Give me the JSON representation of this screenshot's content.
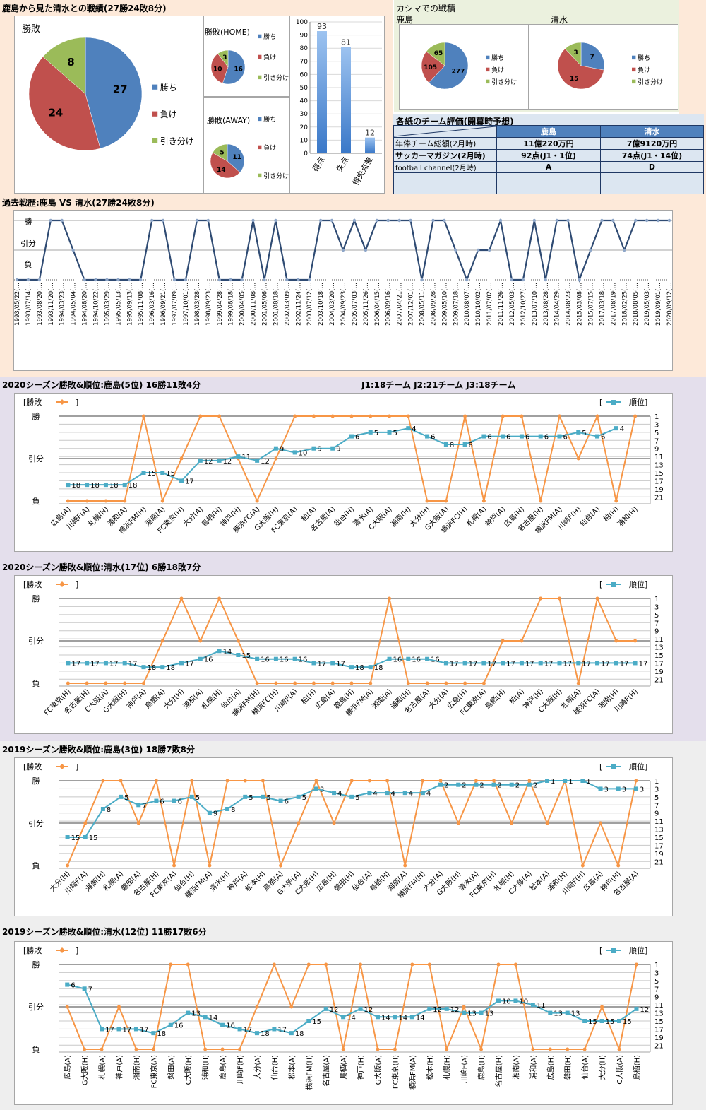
{
  "colors": {
    "win": "#4f81bd",
    "loss": "#c0504d",
    "draw": "#9bbb59",
    "history_line": "#2f4b73",
    "result_line": "#f79646",
    "rank_line": "#4bacc6",
    "table_header": "#4f81bd"
  },
  "sections": {
    "overall_title": "鹿島から見た清水との戦績(27勝24敗8分)",
    "kashima_stadium_title": "カシマでの戦積",
    "kashima_label": "鹿島",
    "shimizu_label": "清水",
    "evaluation_title": "各紙のチーム評価(開幕時予想)",
    "history_title": "過去戦歴:鹿島 VS 清水(27勝24敗8分)",
    "k2020_title": "2020シーズン勝敗&順位:鹿島(5位) 16勝11敗4分",
    "league_info": "J1:18チーム J2:21チーム J3:18チーム",
    "s2020_title": "2020シーズン勝敗&順位:清水(17位) 6勝18敗7分",
    "k2019_title": "2019シーズン勝敗&順位:鹿島(3位) 18勝7敗8分",
    "s2019_title": "2019シーズン勝敗&順位:清水(12位) 11勝17敗6分"
  },
  "legend": {
    "win": "勝ち",
    "loss": "負け",
    "draw": "引き分け",
    "result": "勝敗",
    "rank": "順位"
  },
  "evaluation_table": {
    "header": [
      "",
      "鹿島",
      "清水"
    ],
    "rows": [
      [
        "年俸チーム総額(2月時)",
        "11億220万円",
        "7億9120万円"
      ],
      [
        "サッカーマガジン(2月時)",
        "92点(J1・1位)",
        "74点(J1・14位)"
      ],
      [
        "football channel(2月時)",
        "A",
        "D"
      ],
      [
        "",
        "",
        ""
      ],
      [
        "",
        "",
        ""
      ]
    ]
  },
  "chart_data": [
    {
      "id": "overall_pie",
      "type": "pie",
      "title": "勝敗",
      "labels": [
        "勝ち",
        "負け",
        "引き分け"
      ],
      "values": [
        27,
        24,
        8
      ],
      "legend": "right"
    },
    {
      "id": "home_pie",
      "type": "pie",
      "title": "勝敗(HOME)",
      "labels": [
        "勝ち",
        "負け",
        "引き分け"
      ],
      "values": [
        16,
        10,
        3
      ],
      "legend": "right"
    },
    {
      "id": "away_pie",
      "type": "pie",
      "title": "勝敗(AWAY)",
      "labels": [
        "勝ち",
        "負け",
        "引き分け"
      ],
      "values": [
        11,
        14,
        5
      ],
      "legend": "right"
    },
    {
      "id": "goals_bar",
      "type": "bar",
      "categories": [
        "得点",
        "失点",
        "得失点差"
      ],
      "values": [
        93,
        81,
        12
      ],
      "ylim": [
        0,
        100
      ],
      "yticks": [
        0,
        10,
        20,
        30,
        40,
        50,
        60,
        70,
        80,
        90,
        100
      ]
    },
    {
      "id": "kashima_home_pie",
      "type": "pie",
      "title": "鹿島",
      "labels": [
        "勝ち",
        "負け",
        "引き分け"
      ],
      "values": [
        277,
        105,
        65
      ],
      "legend": "right"
    },
    {
      "id": "shimizu_at_kashima_pie",
      "type": "pie",
      "title": "清水",
      "labels": [
        "勝ち",
        "負け",
        "引き分け"
      ],
      "values": [
        7,
        15,
        3
      ],
      "legend": "right"
    },
    {
      "id": "history_line",
      "type": "line",
      "title": "過去戦歴:鹿島 VS 清水",
      "ytick_labels": [
        "負",
        "引分",
        "勝"
      ],
      "x": [
        "1993/05/22",
        "1993/07/14",
        "1993/08/20",
        "1993/11/20",
        "1994/03/23",
        "1994/05/04",
        "1994/08/20",
        "1994/10/22",
        "1995/03/29",
        "1995/05/13",
        "1995/09/13",
        "1995/11/08",
        "1996/03/16",
        "1996/09/21",
        "1997/07/09",
        "1997/10/01",
        "1998/03/28",
        "1998/09/23",
        "1999/04/28",
        "1999/08/18",
        "2000/04/05",
        "2000/11/08",
        "2001/05/06",
        "2001/08/18",
        "2002/03/09",
        "2002/11/24",
        "2003/07/12",
        "2003/10/18",
        "2004/03/20",
        "2004/09/23",
        "2005/07/03",
        "2005/11/26",
        "2006/04/15",
        "2006/09/16",
        "2007/04/21",
        "2007/12/01",
        "2008/05/11",
        "2008/09/28",
        "2009/05/10",
        "2009/07/18",
        "2010/08/07",
        "2010/10/02",
        "2011/07/02",
        "2011/11/26",
        "2012/05/03",
        "2012/10/27",
        "2013/07/10",
        "2013/08/28",
        "2014/04/29",
        "2014/08/23",
        "2015/03/08",
        "2015/07/15",
        "2017/03/18",
        "2017/08/19",
        "2018/02/25",
        "2018/08/05",
        "2019/05/03",
        "2019/09/01",
        "2020/09/12"
      ],
      "results": [
        "L",
        "L",
        "L",
        "W",
        "W",
        "D",
        "L",
        "L",
        "L",
        "L",
        "L",
        "L",
        "W",
        "W",
        "L",
        "L",
        "W",
        "W",
        "L",
        "L",
        "L",
        "W",
        "L",
        "W",
        "L",
        "L",
        "L",
        "W",
        "W",
        "D",
        "W",
        "D",
        "W",
        "W",
        "W",
        "W",
        "L",
        "W",
        "W",
        "D",
        "L",
        "D",
        "D",
        "W",
        "L",
        "L",
        "W",
        "L",
        "W",
        "W",
        "L",
        "D",
        "W",
        "W",
        "D",
        "W",
        "W",
        "W",
        "W"
      ]
    },
    {
      "id": "kashima_2020",
      "type": "line",
      "title": "2020シーズン勝敗&順位:鹿島(5位) 16勝11敗4分",
      "left_axis": [
        "負",
        "引分",
        "勝"
      ],
      "right_axis": [
        1,
        3,
        5,
        7,
        9,
        11,
        13,
        15,
        17,
        19,
        21
      ],
      "x": [
        "広島(A)",
        "川崎F(A)",
        "札幌(H)",
        "浦和(A)",
        "横浜FM(H)",
        "湘南(A)",
        "FC東京(H)",
        "大分(A)",
        "鳥栖(H)",
        "神戸(H)",
        "横浜FC(A)",
        "G大阪(H)",
        "FC東京(A)",
        "柏(A)",
        "名古屋(A)",
        "仙台(H)",
        "清水(A)",
        "C大阪(A)",
        "湘南(H)",
        "大分(H)",
        "G大阪(A)",
        "横浜FC(H)",
        "札幌(A)",
        "神戸(A)",
        "広島(H)",
        "名古屋(H)",
        "横浜FM(A)",
        "川崎F(H)",
        "仙台(A)",
        "柏(H)",
        "浦和(H)"
      ],
      "series": [
        {
          "name": "勝敗",
          "values": [
            "L",
            "L",
            "L",
            "L",
            "W",
            "L",
            "D",
            "W",
            "W",
            "D",
            "L",
            "D",
            "W",
            "W",
            "W",
            "W",
            "W",
            "W",
            "W",
            "L",
            "L",
            "W",
            "L",
            "W",
            "W",
            "L",
            "W",
            "D",
            "W",
            "L",
            "W"
          ]
        },
        {
          "name": "順位",
          "values": [
            18,
            18,
            18,
            18,
            15,
            15,
            17,
            12,
            12,
            11,
            12,
            9,
            10,
            9,
            9,
            6,
            5,
            5,
            4,
            6,
            8,
            8,
            6,
            6,
            6,
            6,
            6,
            5,
            6,
            4,
            null
          ]
        }
      ]
    },
    {
      "id": "shimizu_2020",
      "type": "line",
      "title": "2020シーズン勝敗&順位:清水(17位) 6勝18敗7分",
      "left_axis": [
        "負",
        "引分",
        "勝"
      ],
      "right_axis": [
        1,
        3,
        5,
        7,
        9,
        11,
        13,
        15,
        17,
        19,
        21
      ],
      "x": [
        "FC東京(H)",
        "名古屋(H)",
        "C大阪(A)",
        "G大阪(H)",
        "神戸(A)",
        "鳥栖(A)",
        "大分(H)",
        "浦和(A)",
        "札幌(H)",
        "仙台(A)",
        "横浜FM(H)",
        "横浜FC(H)",
        "川崎F(A)",
        "柏(H)",
        "広島(A)",
        "鹿島(H)",
        "横浜FM(A)",
        "湘南(A)",
        "浦和(H)",
        "名古屋(A)",
        "大分(A)",
        "広島(H)",
        "FC東京(A)",
        "鳥栖(H)",
        "柏(A)",
        "神戸(H)",
        "C大阪(H)",
        "札幌(A)",
        "横浜FC(A)",
        "湘南(H)",
        "川崎F(H)"
      ],
      "series": [
        {
          "name": "勝敗",
          "values": [
            "L",
            "L",
            "L",
            "L",
            "L",
            "D",
            "W",
            "D",
            "W",
            "D",
            "L",
            "L",
            "L",
            "L",
            "L",
            "L",
            "L",
            "W",
            "L",
            "L",
            "L",
            "L",
            "L",
            "D",
            "D",
            "W",
            "W",
            "L",
            "W",
            "D",
            "D"
          ]
        },
        {
          "name": "順位",
          "values": [
            17,
            17,
            17,
            17,
            18,
            18,
            17,
            16,
            14,
            15,
            16,
            16,
            16,
            17,
            17,
            18,
            18,
            16,
            16,
            16,
            17,
            17,
            17,
            17,
            17,
            17,
            17,
            17,
            17,
            17,
            17
          ]
        }
      ]
    },
    {
      "id": "kashima_2019",
      "type": "line",
      "title": "2019シーズン勝敗&順位:鹿島(3位) 18勝7敗8分",
      "left_axis": [
        "負",
        "引分",
        "勝"
      ],
      "right_axis": [
        1,
        3,
        5,
        7,
        9,
        11,
        13,
        15,
        17,
        19,
        21
      ],
      "x": [
        "大分(H)",
        "川崎F(A)",
        "湘南(H)",
        "札幌(A)",
        "磐田(A)",
        "名古屋(H)",
        "FC東京(A)",
        "仙台(H)",
        "横浜FM(A)",
        "清水(H)",
        "神戸(A)",
        "松本(H)",
        "鳥栖(A)",
        "G大阪(A)",
        "C大阪(H)",
        "広島(H)",
        "磐田(H)",
        "仙台(A)",
        "鳥栖(H)",
        "湘南(A)",
        "横浜FM(H)",
        "大分(A)",
        "G大阪(H)",
        "清水(A)",
        "FC東京(H)",
        "札幌(H)",
        "C大阪(A)",
        "松本(A)",
        "浦和(H)",
        "川崎F(H)",
        "広島(A)",
        "神戸(H)",
        "名古屋(A)"
      ],
      "series": [
        {
          "name": "勝敗",
          "values": [
            "L",
            "D",
            "W",
            "W",
            "D",
            "W",
            "L",
            "W",
            "L",
            "W",
            "W",
            "W",
            "L",
            "D",
            "W",
            "D",
            "W",
            "W",
            "W",
            "L",
            "W",
            "W",
            "D",
            "W",
            "W",
            "D",
            "W",
            "D",
            "W",
            "L",
            "D",
            "L",
            "W"
          ]
        },
        {
          "name": "順位",
          "values": [
            15,
            15,
            8,
            5,
            7,
            6,
            6,
            5,
            9,
            8,
            5,
            5,
            6,
            5,
            3,
            4,
            5,
            4,
            4,
            4,
            4,
            2,
            2,
            2,
            2,
            2,
            2,
            1,
            1,
            1,
            3,
            3,
            3
          ]
        }
      ]
    },
    {
      "id": "shimizu_2019",
      "type": "line",
      "title": "2019シーズン勝敗&順位:清水(12位) 11勝17敗6分",
      "left_axis": [
        "負",
        "引分",
        "勝"
      ],
      "right_axis": [
        1,
        3,
        5,
        7,
        9,
        11,
        13,
        15,
        17,
        19,
        21
      ],
      "x": [
        "広島(A)",
        "G大阪(H)",
        "札幌(A)",
        "神戸(A)",
        "湘南(H)",
        "FC東京(A)",
        "磐田(A)",
        "C大阪(H)",
        "浦和(H)",
        "鹿島(A)",
        "川崎F(H)",
        "大分(A)",
        "仙台(H)",
        "松本(A)",
        "横浜FM(H)",
        "名古屋(A)",
        "鳥栖(A)",
        "神戸(H)",
        "G大阪(A)",
        "FC東京(H)",
        "横浜FM(A)",
        "松本(H)",
        "札幌(H)",
        "川崎F(A)",
        "鹿島(H)",
        "名古屋(H)",
        "湘南(A)",
        "浦和(A)",
        "広島(H)",
        "磐田(H)",
        "仙台(A)",
        "大分(H)",
        "C大阪(A)",
        "鳥栖(H)"
      ],
      "series": [
        {
          "name": "勝敗",
          "values": [
            "D",
            "L",
            "L",
            "D",
            "L",
            "L",
            "W",
            "W",
            "L",
            "L",
            "L",
            "D",
            "W",
            "D",
            "W",
            "W",
            "L",
            "W",
            "L",
            "L",
            "W",
            "W",
            "L",
            "D",
            "L",
            "W",
            "W",
            "L",
            "L",
            "L",
            "L",
            "D",
            "L",
            "W"
          ]
        },
        {
          "name": "順位",
          "values": [
            6,
            7,
            17,
            17,
            17,
            18,
            16,
            13,
            14,
            16,
            17,
            18,
            17,
            18,
            15,
            12,
            14,
            12,
            14,
            14,
            14,
            12,
            12,
            13,
            13,
            10,
            10,
            11,
            13,
            13,
            15,
            15,
            15,
            12
          ]
        }
      ]
    }
  ]
}
